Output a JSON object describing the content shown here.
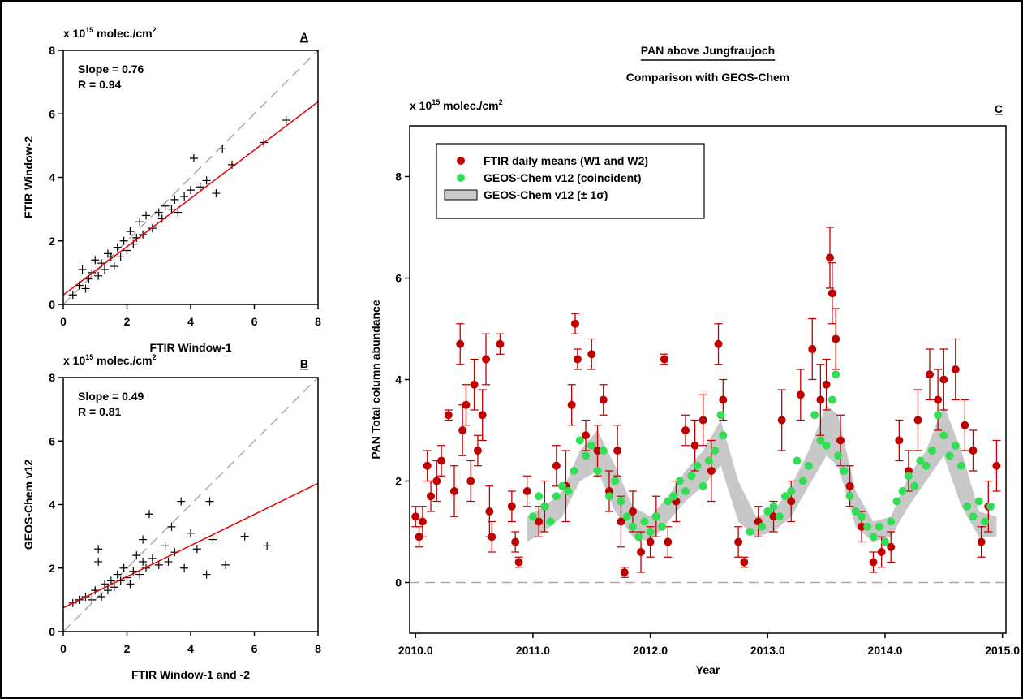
{
  "chart_data": [
    {
      "type": "scatter",
      "panel_label": "A",
      "unit": {
        "prefix": "x 10",
        "exp": "15",
        "text": " molec./cm",
        "exp2": "2"
      },
      "x_label": "FTIR Window-1",
      "y_label": "FTIR Window-2",
      "annotations": [
        "Slope = 0.76",
        "R = 0.94"
      ],
      "fit": {
        "slope": 0.76,
        "intercept": 0.3,
        "color": "#e00000"
      },
      "color": "#000000",
      "xlim": [
        0,
        8
      ],
      "ylim": [
        0,
        8
      ],
      "xticks": [
        0,
        2,
        4,
        6,
        8
      ],
      "yticks": [
        0,
        2,
        4,
        6,
        8
      ],
      "x": [
        0.3,
        0.5,
        0.6,
        0.8,
        0.9,
        1.0,
        1.1,
        1.2,
        1.3,
        1.4,
        1.5,
        1.6,
        1.7,
        1.8,
        1.9,
        2.0,
        2.1,
        2.2,
        2.3,
        2.4,
        2.5,
        2.6,
        2.8,
        3.0,
        3.1,
        3.2,
        3.4,
        3.5,
        3.6,
        3.8,
        4.0,
        4.1,
        4.3,
        4.5,
        4.8,
        5.0,
        5.3,
        6.3,
        7.0,
        0.7
      ],
      "y": [
        0.3,
        0.6,
        1.1,
        0.8,
        1.0,
        1.4,
        0.9,
        1.3,
        1.1,
        1.6,
        1.5,
        1.2,
        1.8,
        1.5,
        2.0,
        1.7,
        2.3,
        1.9,
        2.1,
        2.6,
        2.2,
        2.8,
        2.4,
        2.9,
        2.7,
        3.1,
        3.0,
        3.3,
        2.9,
        3.4,
        3.6,
        4.6,
        3.7,
        3.9,
        3.5,
        4.9,
        4.4,
        5.1,
        5.8,
        0.5
      ]
    },
    {
      "type": "scatter",
      "panel_label": "B",
      "unit": {
        "prefix": "x 10",
        "exp": "15",
        "text": " molec./cm",
        "exp2": "2"
      },
      "x_label": "FTIR Window-1 and -2",
      "y_label": "GEOS-Chem v12",
      "annotations": [
        "Slope = 0.49",
        "R = 0.81"
      ],
      "fit": {
        "slope": 0.49,
        "intercept": 0.75,
        "color": "#e00000"
      },
      "color": "#000000",
      "xlim": [
        0,
        8
      ],
      "ylim": [
        0,
        8
      ],
      "xticks": [
        0,
        2,
        4,
        6,
        8
      ],
      "yticks": [
        0,
        2,
        4,
        6,
        8
      ],
      "x": [
        0.3,
        0.5,
        0.7,
        0.9,
        1.0,
        1.1,
        1.2,
        1.3,
        1.4,
        1.5,
        1.6,
        1.7,
        1.8,
        1.9,
        2.0,
        2.1,
        2.2,
        2.3,
        2.4,
        2.5,
        2.6,
        2.7,
        2.8,
        3.0,
        3.2,
        3.3,
        3.5,
        3.7,
        3.8,
        4.0,
        4.2,
        4.5,
        4.7,
        5.1,
        5.7,
        6.4,
        1.1,
        2.5,
        3.4,
        4.6
      ],
      "y": [
        0.9,
        1.0,
        1.1,
        1.0,
        1.3,
        2.6,
        1.1,
        1.5,
        1.3,
        1.6,
        1.4,
        1.8,
        1.6,
        2.0,
        1.7,
        1.5,
        1.9,
        2.4,
        1.8,
        2.2,
        2.0,
        3.7,
        2.3,
        2.1,
        2.7,
        2.2,
        2.5,
        4.1,
        2.0,
        3.1,
        2.6,
        1.8,
        2.9,
        2.1,
        3.0,
        2.7,
        2.2,
        2.9,
        3.3,
        4.1
      ]
    },
    {
      "type": "timeseries",
      "panel_label": "C",
      "title": "PAN above Jungfraujoch",
      "subtitle": "Comparison with GEOS-Chem",
      "unit": {
        "prefix": "x 10",
        "exp": "15",
        "text": " molec./cm",
        "exp2": "2"
      },
      "x_label": "Year",
      "y_label": "PAN Total column abundance",
      "xlim": [
        2009.95,
        2015.03
      ],
      "ylim": [
        -1,
        9
      ],
      "xticks": [
        {
          "value": 2010,
          "label": "2010.0"
        },
        {
          "value": 2011,
          "label": "2011.0"
        },
        {
          "value": 2012,
          "label": "2012.0"
        },
        {
          "value": 2013,
          "label": "2013.0"
        },
        {
          "value": 2014,
          "label": "2014.0"
        },
        {
          "value": 2015,
          "label": "2015.0"
        }
      ],
      "yticks": [
        0,
        2,
        4,
        6,
        8
      ],
      "hline": 0,
      "legend": "upper left",
      "series": [
        {
          "name": "FTIR daily means (W1 and W2)",
          "color": "#c00000",
          "kind": "errorbar",
          "x": [
            2010.0,
            2010.03,
            2010.06,
            2010.1,
            2010.13,
            2010.18,
            2010.22,
            2010.28,
            2010.33,
            2010.38,
            2010.4,
            2010.43,
            2010.47,
            2010.5,
            2010.53,
            2010.57,
            2010.6,
            2010.63,
            2010.65,
            2010.72,
            2010.82,
            2010.85,
            2010.88,
            2010.95,
            2011.05,
            2011.1,
            2011.2,
            2011.28,
            2011.33,
            2011.36,
            2011.38,
            2011.45,
            2011.5,
            2011.55,
            2011.6,
            2011.65,
            2011.72,
            2011.75,
            2011.78,
            2011.85,
            2011.92,
            2012.0,
            2012.05,
            2012.12,
            2012.15,
            2012.22,
            2012.3,
            2012.38,
            2012.45,
            2012.52,
            2012.58,
            2012.62,
            2012.75,
            2012.8,
            2012.92,
            2013.05,
            2013.12,
            2013.2,
            2013.28,
            2013.38,
            2013.45,
            2013.5,
            2013.53,
            2013.55,
            2013.58,
            2013.62,
            2013.7,
            2013.8,
            2013.9,
            2013.97,
            2014.05,
            2014.12,
            2014.2,
            2014.28,
            2014.38,
            2014.45,
            2014.5,
            2014.6,
            2014.68,
            2014.75,
            2014.82,
            2014.88,
            2014.95
          ],
          "values": [
            1.3,
            0.9,
            1.2,
            2.3,
            1.7,
            2.0,
            2.4,
            3.3,
            1.8,
            4.7,
            3.0,
            3.5,
            2.0,
            3.9,
            2.6,
            3.3,
            4.4,
            1.4,
            0.9,
            4.7,
            1.5,
            0.8,
            0.4,
            1.8,
            1.2,
            1.5,
            2.3,
            1.9,
            3.5,
            5.1,
            4.4,
            2.9,
            4.5,
            2.6,
            3.6,
            1.8,
            2.6,
            1.2,
            0.2,
            1.4,
            0.6,
            0.8,
            1.3,
            4.4,
            0.8,
            1.6,
            3.0,
            2.7,
            3.2,
            2.2,
            4.7,
            3.6,
            0.8,
            0.4,
            1.2,
            1.3,
            3.2,
            1.6,
            3.7,
            4.6,
            3.6,
            3.9,
            6.4,
            5.7,
            4.8,
            2.8,
            1.9,
            1.1,
            0.4,
            0.6,
            0.7,
            2.8,
            2.2,
            3.2,
            4.1,
            3.6,
            4.0,
            4.2,
            3.1,
            2.6,
            0.8,
            1.5,
            2.3
          ],
          "errors": [
            0.2,
            0.2,
            0.3,
            0.3,
            0.3,
            0.4,
            0.3,
            0.1,
            0.5,
            0.4,
            0.5,
            0.4,
            0.4,
            0.5,
            0.3,
            0.5,
            0.5,
            0.5,
            0.3,
            0.2,
            0.3,
            0.2,
            0.1,
            0.3,
            0.3,
            0.5,
            0.4,
            0.7,
            0.4,
            0.2,
            0.2,
            0.3,
            0.3,
            0.5,
            0.3,
            0.4,
            0.5,
            0.5,
            0.1,
            0.4,
            0.4,
            0.3,
            0.4,
            0.1,
            0.3,
            0.4,
            0.3,
            0.5,
            0.5,
            0.6,
            0.4,
            0.4,
            0.3,
            0.1,
            0.3,
            0.3,
            0.6,
            0.4,
            0.5,
            0.6,
            0.7,
            0.5,
            0.6,
            0.6,
            0.6,
            0.5,
            0.4,
            0.3,
            0.2,
            0.3,
            0.3,
            0.4,
            0.4,
            0.6,
            0.5,
            0.6,
            0.6,
            0.6,
            0.5,
            0.4,
            0.3,
            0.5,
            0.5
          ]
        },
        {
          "name": "GEOS-Chem v12 (coincident)",
          "color": "#33dd55",
          "kind": "points",
          "x": [
            2011.0,
            2011.05,
            2011.1,
            2011.15,
            2011.2,
            2011.25,
            2011.3,
            2011.35,
            2011.4,
            2011.45,
            2011.5,
            2011.55,
            2011.6,
            2011.65,
            2011.7,
            2011.75,
            2011.8,
            2011.85,
            2011.9,
            2011.95,
            2012.0,
            2012.05,
            2012.1,
            2012.15,
            2012.2,
            2012.25,
            2012.3,
            2012.35,
            2012.4,
            2012.45,
            2012.5,
            2012.55,
            2012.6,
            2012.62,
            2012.85,
            2012.95,
            2013.0,
            2013.05,
            2013.1,
            2013.15,
            2013.2,
            2013.25,
            2013.3,
            2013.35,
            2013.4,
            2013.45,
            2013.5,
            2013.55,
            2013.58,
            2013.6,
            2013.65,
            2013.7,
            2013.75,
            2013.8,
            2013.85,
            2013.9,
            2013.95,
            2014.0,
            2014.05,
            2014.1,
            2014.15,
            2014.2,
            2014.25,
            2014.3,
            2014.35,
            2014.4,
            2014.45,
            2014.5,
            2014.55,
            2014.6,
            2014.65,
            2014.7,
            2014.75,
            2014.8,
            2014.85,
            2014.9
          ],
          "values": [
            1.3,
            1.7,
            1.5,
            1.2,
            1.7,
            1.9,
            1.8,
            2.2,
            2.8,
            2.5,
            2.7,
            2.2,
            2.6,
            1.7,
            2.0,
            1.6,
            1.3,
            1.1,
            0.9,
            1.2,
            1.0,
            1.3,
            1.1,
            1.6,
            1.7,
            2.0,
            1.8,
            2.1,
            2.3,
            1.9,
            2.4,
            2.6,
            3.3,
            2.9,
            1.0,
            1.1,
            1.4,
            1.5,
            1.3,
            1.7,
            1.8,
            2.4,
            2.0,
            2.3,
            3.3,
            2.8,
            2.7,
            3.6,
            4.1,
            2.5,
            2.2,
            1.7,
            1.4,
            1.3,
            1.1,
            0.9,
            1.1,
            0.8,
            1.2,
            1.6,
            1.8,
            2.1,
            1.9,
            2.4,
            2.3,
            2.6,
            3.3,
            2.9,
            2.5,
            2.7,
            2.3,
            1.5,
            1.3,
            1.6,
            1.2,
            1.5
          ]
        },
        {
          "name": "GEOS-Chem v12 (± 1σ)",
          "color": "#c8c8c8",
          "kind": "band",
          "x": [
            2010.95,
            2011.1,
            2011.25,
            2011.4,
            2011.55,
            2011.7,
            2011.85,
            2012.0,
            2012.15,
            2012.3,
            2012.45,
            2012.6,
            2012.75,
            2012.9,
            2013.05,
            2013.2,
            2013.35,
            2013.5,
            2013.6,
            2013.75,
            2013.9,
            2014.05,
            2014.2,
            2014.35,
            2014.5,
            2014.65,
            2014.8,
            2014.95
          ],
          "lower": [
            0.8,
            1.0,
            1.3,
            2.0,
            2.2,
            1.4,
            0.9,
            0.8,
            1.2,
            1.6,
            1.9,
            2.3,
            1.2,
            0.9,
            1.0,
            1.3,
            1.9,
            2.5,
            2.3,
            1.1,
            0.8,
            0.9,
            1.5,
            2.0,
            2.5,
            1.5,
            0.9,
            0.9
          ],
          "upper": [
            1.3,
            1.5,
            1.8,
            2.6,
            3.0,
            2.3,
            1.5,
            1.3,
            1.7,
            2.2,
            2.6,
            3.2,
            2.0,
            1.3,
            1.4,
            1.9,
            2.6,
            3.5,
            3.3,
            1.8,
            1.2,
            1.3,
            2.1,
            2.6,
            3.5,
            2.6,
            1.4,
            1.3
          ]
        }
      ]
    }
  ]
}
